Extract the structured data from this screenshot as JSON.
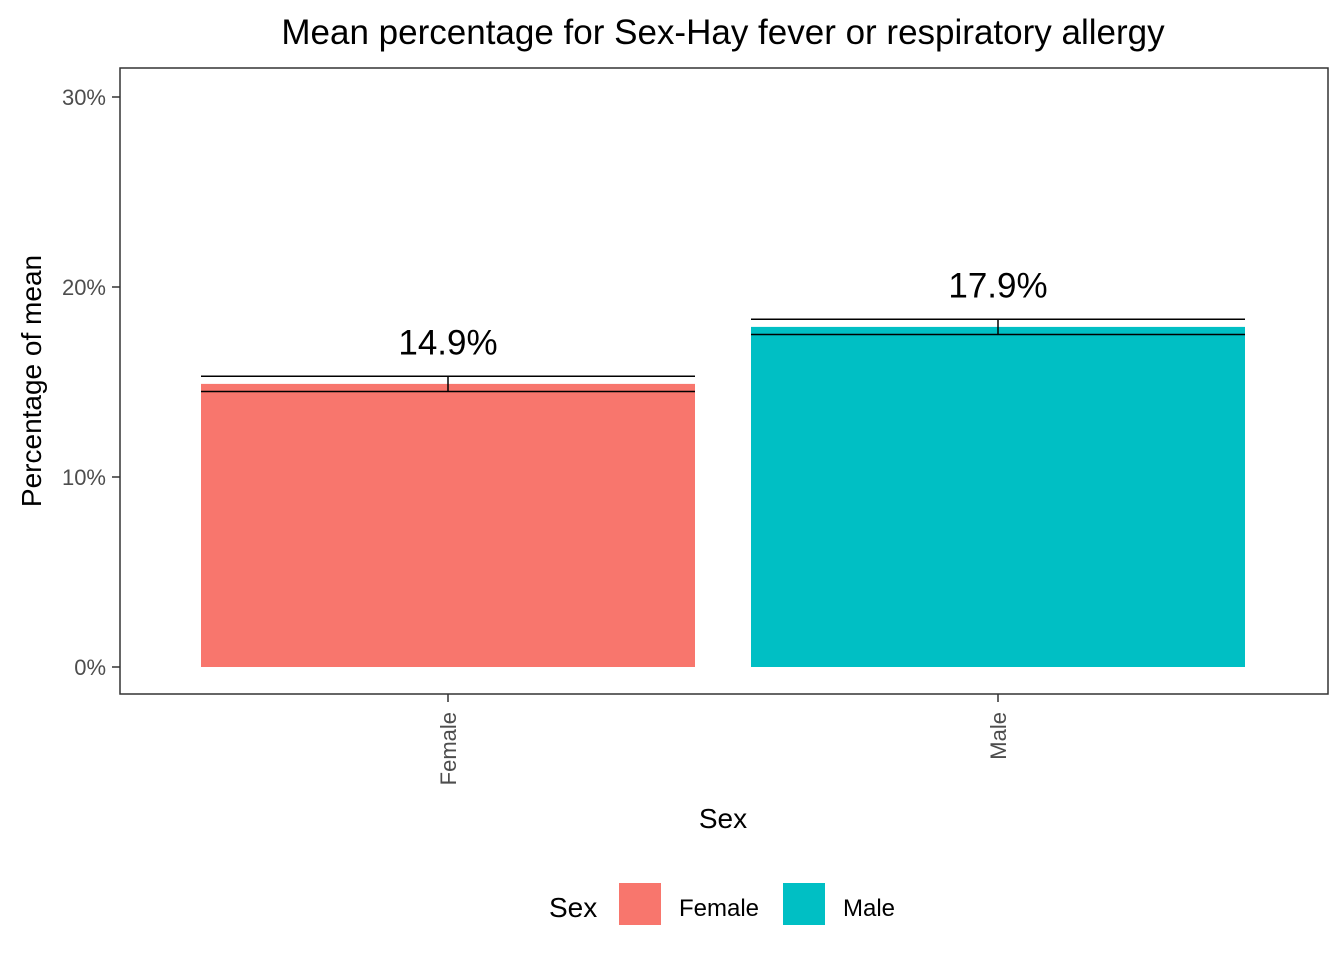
{
  "chart_data": {
    "type": "bar",
    "title": "Mean percentage for Sex-Hay fever or respiratory allergy",
    "xlabel": "Sex",
    "ylabel": "Percentage of mean",
    "categories": [
      "Female",
      "Male"
    ],
    "values": [
      14.9,
      17.9
    ],
    "error_low": [
      14.5,
      17.5
    ],
    "error_high": [
      15.3,
      18.3
    ],
    "data_labels": [
      "14.9%",
      "17.9%"
    ],
    "colors": [
      "#F8766D",
      "#00BFC4"
    ],
    "ylim": [
      0,
      30
    ],
    "yticks": [
      0,
      10,
      20,
      30
    ],
    "ytick_labels": [
      "0%",
      "10%",
      "20%",
      "30%"
    ],
    "grid": false,
    "legend": {
      "title": "Sex",
      "position": "bottom",
      "entries": [
        {
          "label": "Female",
          "color": "#F8766D"
        },
        {
          "label": "Male",
          "color": "#00BFC4"
        }
      ]
    }
  }
}
